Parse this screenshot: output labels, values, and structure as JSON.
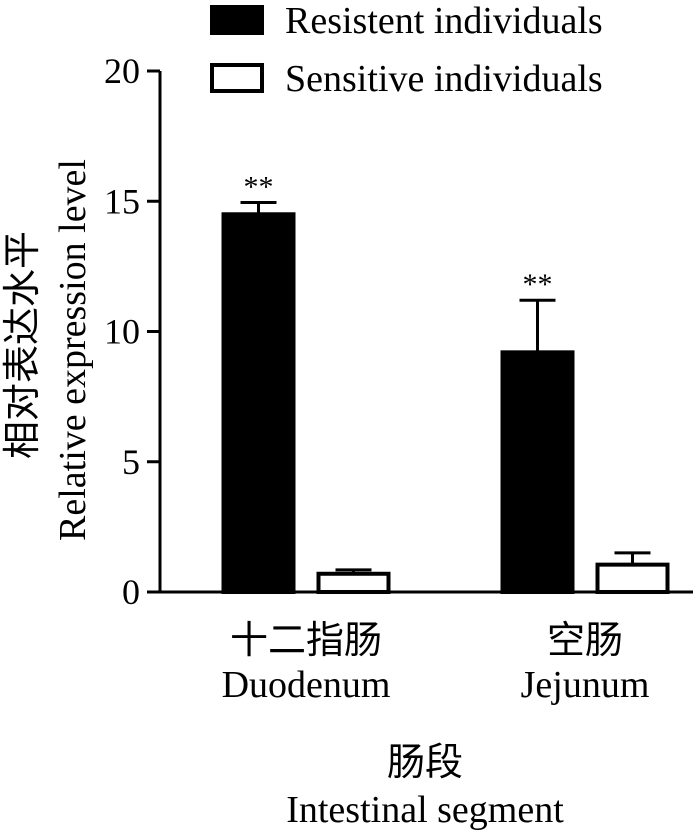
{
  "chart_data": {
    "type": "bar",
    "categories": [
      {
        "cn": "十二指肠",
        "en": "Duodenum"
      },
      {
        "cn": "空肠",
        "en": "Jejunum"
      }
    ],
    "series": [
      {
        "name": "Resistent individuals",
        "fill": "#000000",
        "values": [
          14.5,
          9.2
        ],
        "errors": [
          0.45,
          2.0
        ],
        "significance": [
          "**",
          "**"
        ]
      },
      {
        "name": "Sensitive individuals",
        "fill": "#ffffff",
        "values": [
          0.7,
          1.05
        ],
        "errors": [
          0.15,
          0.45
        ],
        "significance": [
          "",
          ""
        ]
      }
    ],
    "ylim": [
      0,
      20
    ],
    "yticks": [
      0,
      5,
      10,
      15,
      20
    ],
    "ylabel_cn": "相对表达水平",
    "ylabel_en": "Relative expression level",
    "xlabel_cn": "肠段",
    "xlabel_en": "Intestinal segment",
    "legend_position": "top"
  }
}
